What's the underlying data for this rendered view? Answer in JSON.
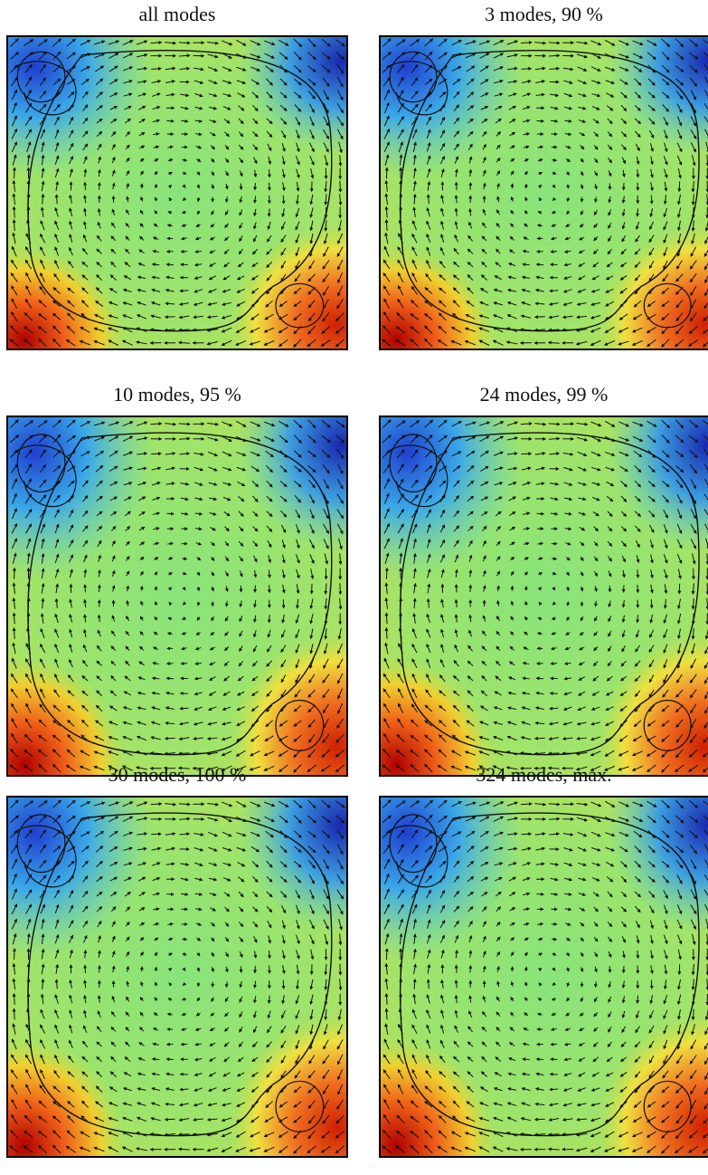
{
  "panels": [
    {
      "title": "all modes"
    },
    {
      "title": "3 modes, 90 %"
    },
    {
      "title": "10 modes, 95 %"
    },
    {
      "title": "24 modes, 99 %"
    },
    {
      "title": "30 modes, 100 %"
    },
    {
      "title": "324 modes, max."
    }
  ]
}
